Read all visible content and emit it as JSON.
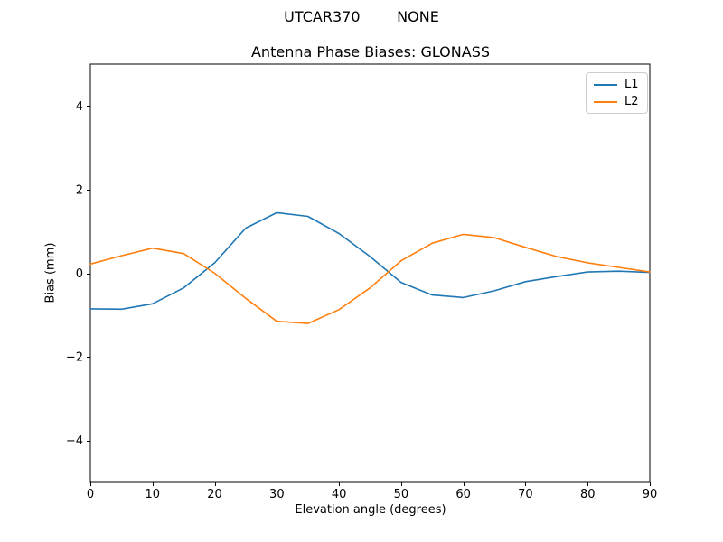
{
  "figure": {
    "suptitle": "UTCAR370        NONE"
  },
  "chart_data": {
    "type": "line",
    "title": "Antenna Phase Biases: GLONASS",
    "xlabel": "Elevation angle (degrees)",
    "ylabel": "Bias (mm)",
    "xlim": [
      0,
      90
    ],
    "ylim": [
      -5,
      5
    ],
    "x_ticks": [
      0,
      10,
      20,
      30,
      40,
      50,
      60,
      70,
      80,
      90
    ],
    "y_ticks": [
      -4,
      -2,
      0,
      2,
      4
    ],
    "grid": false,
    "legend_position": "upper right",
    "x": [
      0,
      5,
      10,
      15,
      20,
      25,
      30,
      35,
      40,
      45,
      50,
      55,
      60,
      65,
      70,
      75,
      80,
      85,
      90
    ],
    "series": [
      {
        "name": "L1",
        "color": "#1f77b4",
        "values": [
          -0.85,
          -0.86,
          -0.73,
          -0.35,
          0.25,
          1.08,
          1.45,
          1.36,
          0.95,
          0.4,
          -0.22,
          -0.52,
          -0.58,
          -0.42,
          -0.2,
          -0.08,
          0.03,
          0.05,
          0.02
        ]
      },
      {
        "name": "L2",
        "color": "#ff7f0e",
        "values": [
          0.22,
          0.42,
          0.6,
          0.47,
          0.0,
          -0.6,
          -1.15,
          -1.2,
          -0.87,
          -0.35,
          0.3,
          0.72,
          0.93,
          0.85,
          0.62,
          0.4,
          0.25,
          0.14,
          0.03
        ]
      }
    ]
  }
}
